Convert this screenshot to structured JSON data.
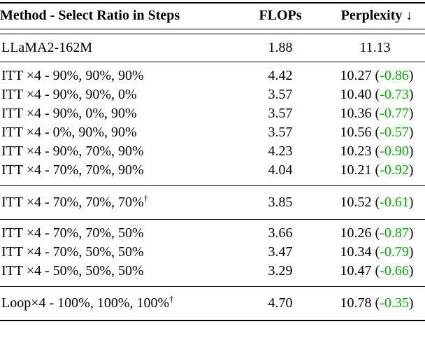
{
  "table": {
    "columns": [
      {
        "label": "Method - Select Ratio in Steps"
      },
      {
        "label": "FLOPs"
      },
      {
        "label": "Perplexity ↓"
      }
    ],
    "colors": {
      "text": "#000000",
      "delta_green": "#00b300",
      "rule": "#000000",
      "background": "#ffffff"
    },
    "rows": [
      {
        "method": "LLaMA2-162M",
        "sup": "",
        "flops": "1.88",
        "ppl": "11.13",
        "open": "",
        "delta": "",
        "close": ""
      },
      {
        "method": "ITT ×4 - 90%, 90%, 90%",
        "sup": "",
        "flops": "4.42",
        "ppl": "10.27",
        "open": "(",
        "delta": "-0.86",
        "close": ")"
      },
      {
        "method": "ITT ×4 - 90%, 90%, 0%",
        "sup": "",
        "flops": "3.57",
        "ppl": "10.40",
        "open": "(",
        "delta": "-0.73",
        "close": ")"
      },
      {
        "method": "ITT ×4 - 90%, 0%, 90%",
        "sup": "",
        "flops": "3.57",
        "ppl": "10.36",
        "open": "(",
        "delta": "-0.77",
        "close": ")"
      },
      {
        "method": "ITT ×4 - 0%, 90%, 90%",
        "sup": "",
        "flops": "3.57",
        "ppl": "10.56",
        "open": "(",
        "delta": "-0.57",
        "close": ")"
      },
      {
        "method": "ITT ×4 - 90%, 70%, 90%",
        "sup": "",
        "flops": "4.23",
        "ppl": "10.23",
        "open": "(",
        "delta": "-0.90",
        "close": ")"
      },
      {
        "method": "ITT ×4 - 70%, 70%, 90%",
        "sup": "",
        "flops": "4.04",
        "ppl": "10.21",
        "open": "(",
        "delta": "-0.92",
        "close": ")"
      },
      {
        "method": "ITT ×4 - 70%, 70%, 70%",
        "sup": "†",
        "flops": "3.85",
        "ppl": "10.52",
        "open": "(",
        "delta": "-0.61",
        "close": ")"
      },
      {
        "method": "ITT ×4 - 70%, 70%, 50%",
        "sup": "",
        "flops": "3.66",
        "ppl": "10.26",
        "open": "(",
        "delta": "-0.87",
        "close": ")"
      },
      {
        "method": "ITT ×4 - 70%, 50%, 50%",
        "sup": "",
        "flops": "3.47",
        "ppl": "10.34",
        "open": "(",
        "delta": "-0.79",
        "close": ")"
      },
      {
        "method": "ITT ×4 - 50%, 50%, 50%",
        "sup": "",
        "flops": "3.29",
        "ppl": "10.47",
        "open": "(",
        "delta": "-0.66",
        "close": ")"
      },
      {
        "method": "Loop×4 - 100%, 100%, 100%",
        "sup": "†",
        "flops": "4.70",
        "ppl": "10.78",
        "open": "(",
        "delta": "-0.35",
        "close": ")"
      }
    ]
  }
}
